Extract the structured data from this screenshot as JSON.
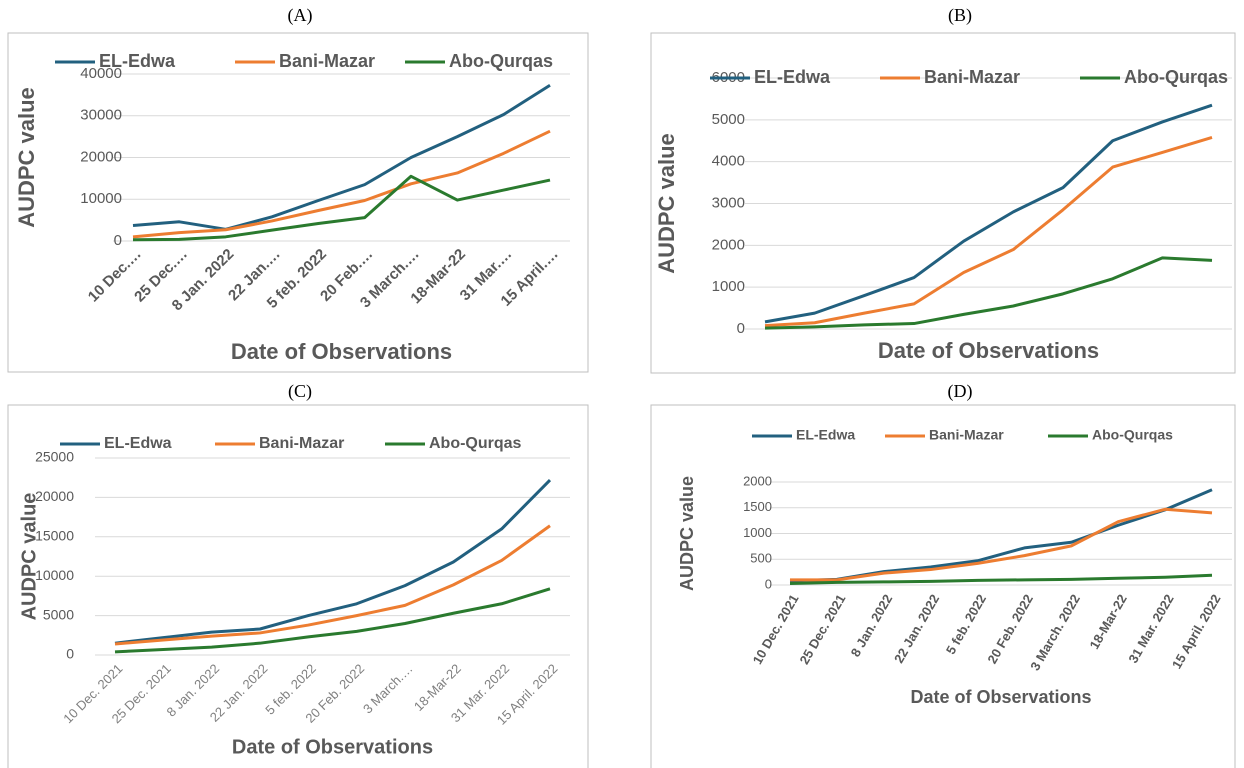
{
  "chart_data": [
    {
      "type": "line",
      "title": "(A)",
      "ylabel": "AUDPC value",
      "xlabel": "Date of Observations",
      "categories": [
        "10 Dec.…",
        "25 Dec.…",
        "8 Jan. 2022",
        "22 Jan.…",
        "5 feb. 2022",
        "20 Feb.…",
        "3 March.…",
        "18-Mar-22",
        "31 Mar.…",
        "15 April.…"
      ],
      "series": [
        {
          "name": "EL-Edwa",
          "color": "#22607f",
          "values": [
            3700,
            4600,
            2800,
            5800,
            9700,
            13500,
            20000,
            25000,
            30300,
            37300
          ]
        },
        {
          "name": "Bani-Mazar",
          "color": "#ed7d31",
          "values": [
            1000,
            2000,
            2700,
            4800,
            7300,
            9700,
            13700,
            16300,
            21000,
            26300
          ]
        },
        {
          "name": "Abo-Qurqas",
          "color": "#2a7a2e",
          "values": [
            300,
            400,
            1000,
            2600,
            4200,
            5600,
            15500,
            9800,
            12200,
            14600
          ]
        }
      ],
      "ylim": [
        0,
        40000
      ],
      "yticks": [
        0,
        10000,
        20000,
        30000,
        40000
      ],
      "grid": true
    },
    {
      "type": "line",
      "title": "(B)",
      "ylabel": "AUDPC value",
      "xlabel": "Date of Observations",
      "categories": [
        null,
        null,
        null,
        null,
        null,
        null,
        null,
        null,
        null,
        null
      ],
      "series": [
        {
          "name": "EL-Edwa",
          "color": "#22607f",
          "values": [
            170,
            380,
            800,
            1230,
            2100,
            2800,
            3380,
            4500,
            4950,
            5350
          ]
        },
        {
          "name": "Bani-Mazar",
          "color": "#ed7d31",
          "values": [
            80,
            150,
            380,
            600,
            1350,
            1900,
            2850,
            3870,
            4220,
            4580
          ]
        },
        {
          "name": "Abo-Qurqas",
          "color": "#2a7a2e",
          "values": [
            20,
            50,
            100,
            130,
            350,
            550,
            840,
            1200,
            1700,
            1640
          ]
        }
      ],
      "ylim": [
        0,
        6000
      ],
      "yticks": [
        0,
        1000,
        2000,
        3000,
        4000,
        5000,
        6000
      ],
      "grid": true
    },
    {
      "type": "line",
      "title": "(C)",
      "ylabel": "AUDPC value",
      "xlabel": "Date of Observations",
      "categories": [
        "10 Dec. 2021",
        "25 Dec. 2021",
        "8 Jan. 2022",
        "22 Jan. 2022",
        "5 feb. 2022",
        "20 Feb. 2022",
        "3 March.…",
        "18-Mar-22",
        "31 Mar. 2022",
        "15 April. 2022"
      ],
      "series": [
        {
          "name": "EL-Edwa",
          "color": "#22607f",
          "values": [
            1500,
            2200,
            2900,
            3300,
            5000,
            6500,
            8800,
            11800,
            16000,
            22200
          ]
        },
        {
          "name": "Bani-Mazar",
          "color": "#ed7d31",
          "values": [
            1400,
            1900,
            2400,
            2800,
            3800,
            5000,
            6300,
            8900,
            12000,
            16400
          ]
        },
        {
          "name": "Abo-Qurqas",
          "color": "#2a7a2e",
          "values": [
            400,
            700,
            1000,
            1500,
            2300,
            3000,
            4000,
            5300,
            6500,
            8400
          ]
        }
      ],
      "ylim": [
        0,
        25000
      ],
      "yticks": [
        0,
        5000,
        10000,
        15000,
        20000,
        25000
      ],
      "grid": true
    },
    {
      "type": "line",
      "title": "(D)",
      "ylabel": "AUDPC value",
      "xlabel": "Date of Observations",
      "categories": [
        "10 Dec. 2021",
        "25 Dec. 2021",
        "8 Jan. 2022",
        "22 Jan. 2022",
        "5 feb. 2022",
        "20 Feb. 2022",
        "3 March. 2022",
        "18-Mar-22",
        "31 Mar. 2022",
        "15 April. 2022"
      ],
      "series": [
        {
          "name": "EL-Edwa",
          "color": "#22607f",
          "values": [
            80,
            110,
            260,
            350,
            470,
            720,
            830,
            1160,
            1460,
            1850
          ]
        },
        {
          "name": "Bani-Mazar",
          "color": "#ed7d31",
          "values": [
            100,
            100,
            230,
            300,
            420,
            570,
            760,
            1230,
            1470,
            1400
          ]
        },
        {
          "name": "Abo-Qurqas",
          "color": "#2a7a2e",
          "values": [
            30,
            50,
            60,
            70,
            90,
            100,
            110,
            130,
            150,
            190
          ]
        }
      ],
      "ylim": [
        0,
        2000
      ],
      "yticks": [
        0,
        500,
        1000,
        1500,
        2000
      ],
      "grid": true
    }
  ]
}
